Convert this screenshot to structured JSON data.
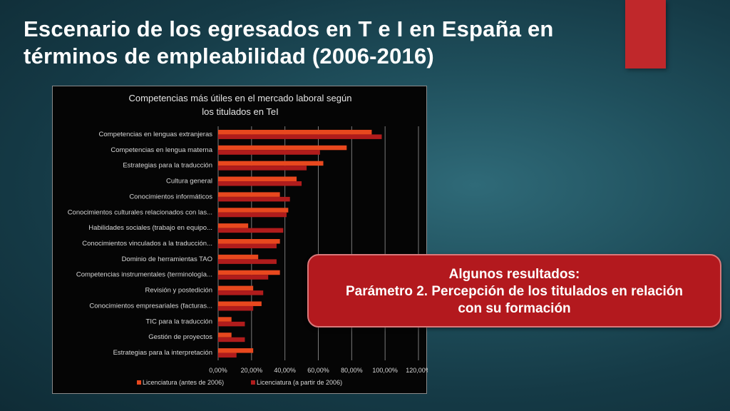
{
  "slide": {
    "title_line1": "Escenario de los egresados en T e I  en España en",
    "title_line2": "términos de empleabilidad (2006-2016)",
    "accent_color": "#c0282b"
  },
  "callout": {
    "line1": "Algunos resultados:",
    "line2": "Parámetro 2. Percepción de los titulados en relación",
    "line3": "con su formación",
    "background_color": "#b3191e"
  },
  "chart_data": {
    "type": "bar",
    "orientation": "horizontal",
    "title": "Competencias más útiles en el mercado laboral según los titulados en TeI",
    "title_lines": [
      "Competencias más útiles en el mercado laboral según",
      "los titulados en TeI"
    ],
    "categories": [
      "Competencias en lenguas extranjeras",
      "Competencias en lengua materna",
      "Estrategias para la traducción",
      "Cultura general",
      "Conocimientos informáticos",
      "Conocimientos culturales relacionados con las...",
      "Habilidades sociales (trabajo en equipo...",
      "Conocimientos vinculados a la traducción...",
      "Dominio de herramientas TAO",
      "Competencias instrumentales (terminología...",
      "Revisión y postedición",
      "Conocimientos empresariales (facturas...",
      "TIC para la traducción",
      "Gestión de proyectos",
      "Estrategias para la interpretación"
    ],
    "series": [
      {
        "name": "Licenciatura (antes de 2006)",
        "color": "#e8481e",
        "values": [
          92,
          77,
          63,
          47,
          37,
          42,
          18,
          37,
          24,
          37,
          21,
          26,
          8,
          8,
          21
        ]
      },
      {
        "name": "Licenciatura (a partir de 2006)",
        "color": "#b01c1c",
        "values": [
          98,
          61,
          53,
          50,
          43,
          41,
          39,
          35,
          35,
          30,
          27,
          21,
          16,
          16,
          11
        ]
      }
    ],
    "xlim": [
      0,
      120
    ],
    "xticks": [
      "0,00%",
      "20,00%",
      "40,00%",
      "60,00%",
      "80,00%",
      "100,00%",
      "120,00%"
    ],
    "grid": true,
    "legend_position": "bottom"
  }
}
